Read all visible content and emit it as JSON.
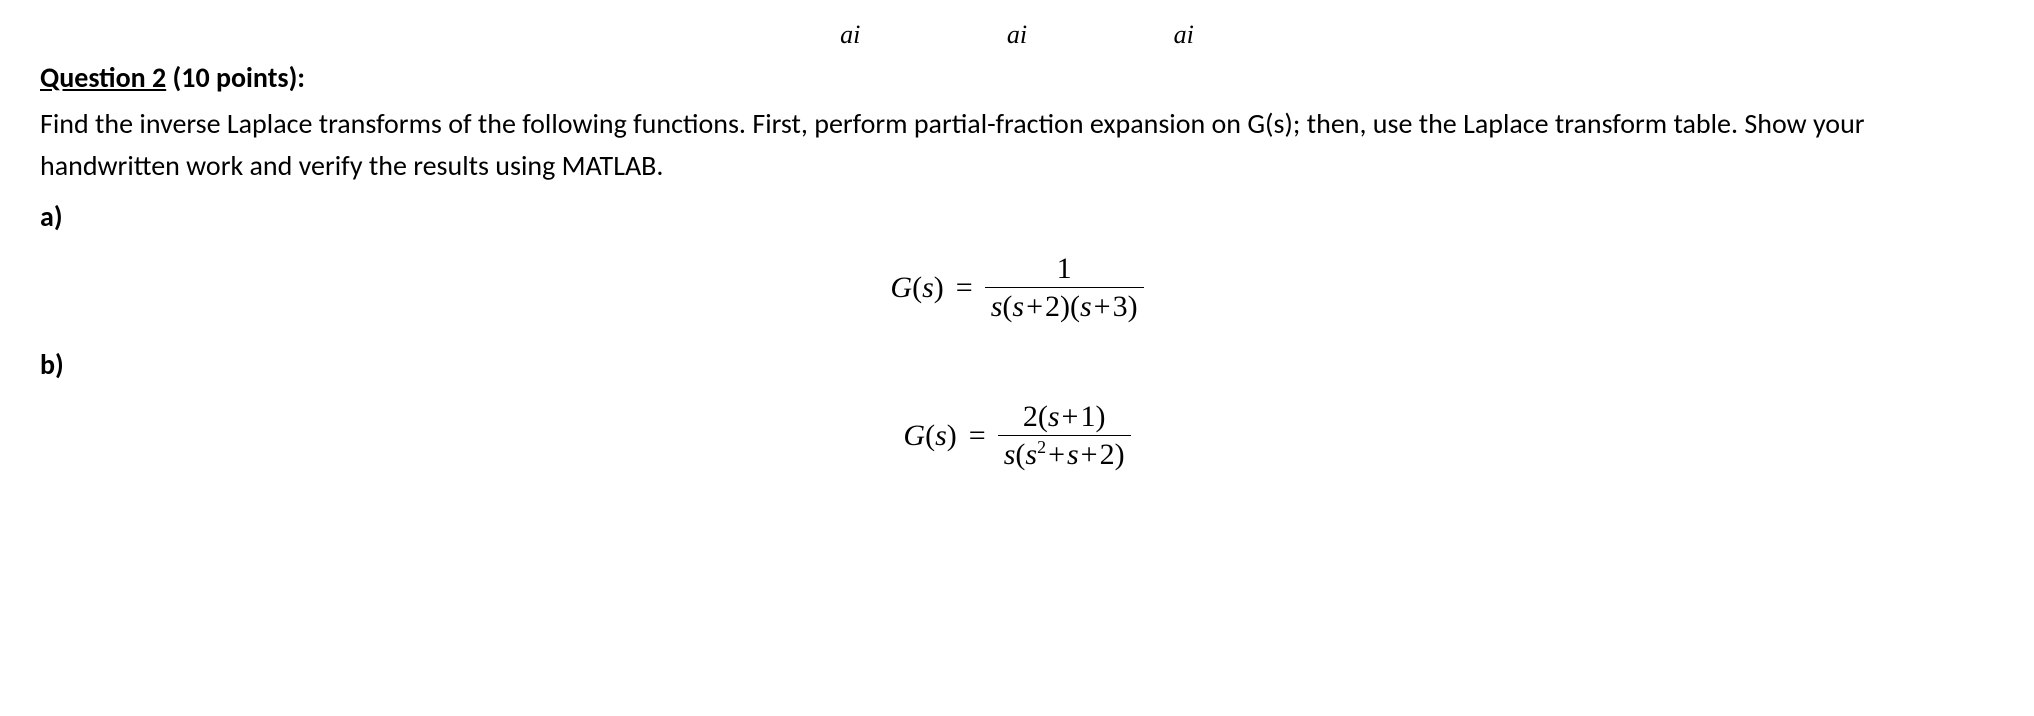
{
  "artifacts": [
    "ai",
    "ai",
    "ai"
  ],
  "question": {
    "label": "Question 2",
    "points": "(10 points):",
    "body": "Find the inverse Laplace transforms of the following functions. First, perform partial-fraction expansion on G(s); then, use the Laplace transform table.  Show your handwritten work and verify the results using MATLAB."
  },
  "parts": {
    "a": {
      "label": "a)",
      "lhs_fn": "G",
      "lhs_var": "s",
      "numerator": "1",
      "denominator_parts": {
        "s_leading": "s",
        "factor1_var": "s",
        "factor1_op": "+",
        "factor1_const": "2",
        "factor2_var": "s",
        "factor2_op": "+",
        "factor2_const": "3"
      }
    },
    "b": {
      "label": "b)",
      "lhs_fn": "G",
      "lhs_var": "s",
      "numerator_parts": {
        "coef": "2",
        "var": "s",
        "op": "+",
        "const": "1"
      },
      "denominator_parts": {
        "s_leading": "s",
        "var": "s",
        "exp": "2",
        "op1": "+",
        "mid": "s",
        "op2": "+",
        "const": "2"
      }
    }
  }
}
